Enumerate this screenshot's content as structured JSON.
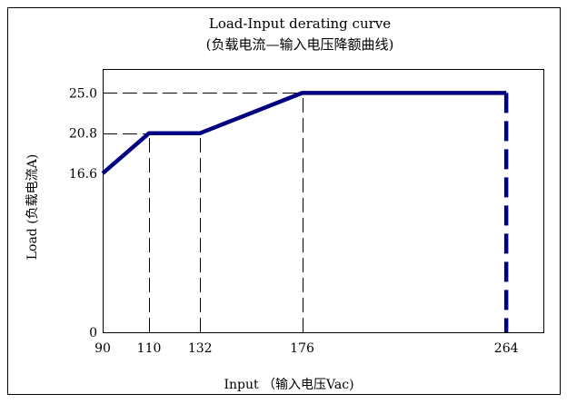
{
  "chart_data": {
    "type": "line",
    "title": "Load-Input derating curve",
    "subtitle": "(负载电流—输入电压降额曲线)",
    "xlabel": "Input （输入电压Vac)",
    "ylabel": "Load (负载电流A)",
    "x_ticks": [
      90,
      110,
      132,
      176,
      264
    ],
    "y_ticks": [
      {
        "value": 0,
        "label": "0"
      },
      {
        "value": 16.6,
        "label": "16.6"
      },
      {
        "value": 20.8,
        "label": "20.8"
      },
      {
        "value": 25.0,
        "label": "25.0"
      }
    ],
    "xlim": [
      90,
      280
    ],
    "ylim": [
      0,
      27.5
    ],
    "grid": false,
    "series": [
      {
        "points": [
          {
            "x": 90,
            "y": 16.6
          },
          {
            "x": 110,
            "y": 20.8
          },
          {
            "x": 132,
            "y": 20.8
          },
          {
            "x": 176,
            "y": 25.0
          },
          {
            "x": 264,
            "y": 25.0
          }
        ]
      }
    ],
    "cutoff": {
      "x": 264,
      "y_from": 25.0,
      "y_to": 0
    },
    "guide_lines": [
      {
        "axis": "x",
        "value": 110,
        "y_to": 20.8
      },
      {
        "axis": "x",
        "value": 132,
        "y_to": 20.8
      },
      {
        "axis": "x",
        "value": 176,
        "y_to": 25.0
      },
      {
        "axis": "y",
        "value": 20.8,
        "x_to": 110
      },
      {
        "axis": "y",
        "value": 25.0,
        "x_to": 264
      }
    ],
    "colors": {
      "series": "#000080",
      "frame": "#000000",
      "guides": "#000000"
    }
  }
}
